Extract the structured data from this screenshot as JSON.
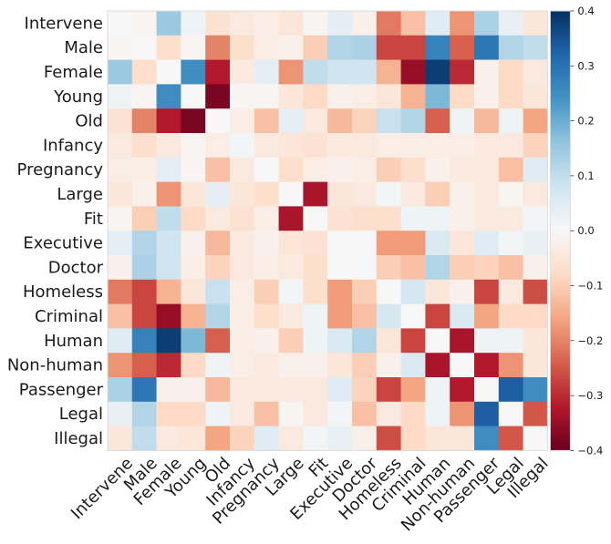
{
  "chart_data": {
    "type": "heatmap",
    "title": "",
    "xlabel": "",
    "ylabel": "",
    "labels": [
      "Intervene",
      "Male",
      "Female",
      "Young",
      "Old",
      "Infancy",
      "Pregnancy",
      "Large",
      "Fit",
      "Executive",
      "Doctor",
      "Homeless",
      "Criminal",
      "Human",
      "Non-human",
      "Passenger",
      "Legal",
      "Illegal"
    ],
    "colormap": "RdBu",
    "vmin": -0.4,
    "vmax": 0.4,
    "colorbar_ticks": [
      0.4,
      0.3,
      0.2,
      0.1,
      0.0,
      -0.1,
      -0.2,
      -0.3,
      -0.4
    ],
    "colorbar_tick_labels": [
      "0.4",
      "0.3",
      "0.2",
      "0.1",
      "0.0",
      "−0.1",
      "−0.2",
      "−0.3",
      "−0.4"
    ],
    "grid": false,
    "matrix": [
      [
        0.0,
        -0.01,
        0.15,
        0.02,
        -0.06,
        -0.04,
        -0.03,
        -0.05,
        -0.01,
        0.04,
        -0.02,
        -0.21,
        -0.12,
        0.05,
        -0.18,
        0.13,
        0.03,
        -0.05
      ],
      [
        -0.01,
        0.0,
        -0.07,
        -0.01,
        -0.2,
        -0.07,
        -0.03,
        -0.02,
        -0.1,
        0.12,
        0.13,
        -0.27,
        -0.27,
        0.27,
        -0.24,
        0.29,
        0.12,
        0.1
      ],
      [
        0.15,
        -0.07,
        0.0,
        0.25,
        -0.32,
        -0.04,
        0.04,
        -0.18,
        0.1,
        0.08,
        0.08,
        -0.14,
        -0.35,
        0.38,
        -0.3,
        -0.02,
        -0.08,
        -0.04
      ],
      [
        0.02,
        -0.01,
        0.25,
        0.0,
        -0.38,
        -0.01,
        -0.01,
        -0.05,
        -0.08,
        -0.02,
        -0.03,
        -0.05,
        -0.14,
        0.18,
        -0.08,
        -0.02,
        -0.08,
        -0.05
      ],
      [
        -0.06,
        -0.2,
        -0.32,
        -0.38,
        0.0,
        -0.03,
        -0.12,
        0.04,
        -0.04,
        -0.13,
        -0.09,
        0.09,
        0.12,
        -0.24,
        0.02,
        -0.13,
        0.02,
        -0.16
      ],
      [
        -0.04,
        -0.07,
        -0.04,
        -0.01,
        -0.03,
        0.01,
        -0.04,
        -0.05,
        -0.06,
        -0.04,
        -0.04,
        -0.03,
        -0.03,
        -0.03,
        -0.03,
        -0.04,
        -0.04,
        -0.09
      ],
      [
        -0.03,
        -0.03,
        0.04,
        -0.01,
        -0.12,
        -0.04,
        0.0,
        -0.07,
        -0.03,
        -0.02,
        -0.03,
        -0.1,
        -0.07,
        -0.02,
        -0.04,
        -0.04,
        -0.12,
        0.05
      ],
      [
        -0.05,
        -0.02,
        -0.18,
        -0.05,
        0.04,
        -0.05,
        -0.07,
        0.0,
        -0.33,
        -0.05,
        -0.04,
        0.01,
        -0.04,
        -0.1,
        -0.02,
        -0.04,
        -0.01,
        -0.04
      ],
      [
        -0.01,
        -0.1,
        0.1,
        -0.08,
        -0.04,
        -0.06,
        -0.03,
        -0.33,
        0.0,
        -0.06,
        -0.07,
        -0.07,
        0.02,
        0.02,
        -0.02,
        -0.04,
        -0.04,
        0.01
      ],
      [
        0.04,
        0.12,
        0.08,
        -0.02,
        -0.13,
        -0.04,
        -0.02,
        -0.05,
        -0.06,
        0.0,
        0.0,
        -0.17,
        -0.17,
        0.06,
        -0.05,
        0.05,
        0.01,
        0.03
      ],
      [
        -0.02,
        0.13,
        0.08,
        -0.03,
        -0.09,
        -0.04,
        -0.03,
        -0.04,
        -0.07,
        0.0,
        0.0,
        -0.1,
        -0.12,
        0.12,
        -0.1,
        -0.09,
        -0.12,
        -0.02
      ],
      [
        -0.21,
        -0.27,
        -0.14,
        -0.05,
        0.09,
        -0.03,
        -0.1,
        0.01,
        -0.07,
        -0.17,
        -0.1,
        0.0,
        0.07,
        -0.05,
        -0.02,
        -0.27,
        -0.04,
        -0.26
      ],
      [
        -0.12,
        -0.27,
        -0.35,
        -0.14,
        0.12,
        -0.03,
        -0.07,
        -0.04,
        0.02,
        -0.17,
        -0.12,
        0.07,
        0.0,
        -0.27,
        0.06,
        -0.16,
        -0.08,
        -0.08
      ],
      [
        0.05,
        0.27,
        0.38,
        0.18,
        -0.24,
        -0.03,
        -0.02,
        -0.1,
        0.02,
        0.06,
        0.12,
        -0.05,
        -0.27,
        0.0,
        -0.33,
        0.02,
        0.02,
        -0.05
      ],
      [
        -0.18,
        -0.24,
        -0.3,
        -0.08,
        0.02,
        -0.03,
        -0.04,
        -0.02,
        -0.02,
        -0.05,
        -0.1,
        -0.02,
        0.06,
        -0.33,
        0.0,
        -0.32,
        -0.18,
        -0.05
      ],
      [
        0.13,
        0.29,
        -0.02,
        -0.02,
        -0.13,
        -0.04,
        -0.04,
        -0.04,
        -0.04,
        0.05,
        -0.09,
        -0.27,
        -0.16,
        0.02,
        -0.32,
        0.0,
        0.33,
        0.25
      ],
      [
        0.03,
        0.12,
        -0.08,
        -0.08,
        0.02,
        -0.04,
        -0.12,
        -0.01,
        -0.04,
        0.01,
        -0.12,
        -0.04,
        -0.08,
        0.02,
        -0.18,
        0.33,
        0.0,
        -0.25
      ],
      [
        -0.05,
        0.1,
        -0.04,
        -0.05,
        -0.16,
        -0.09,
        0.05,
        -0.04,
        0.01,
        0.03,
        -0.02,
        -0.26,
        -0.08,
        -0.05,
        -0.05,
        0.25,
        -0.25,
        0.0
      ]
    ]
  }
}
